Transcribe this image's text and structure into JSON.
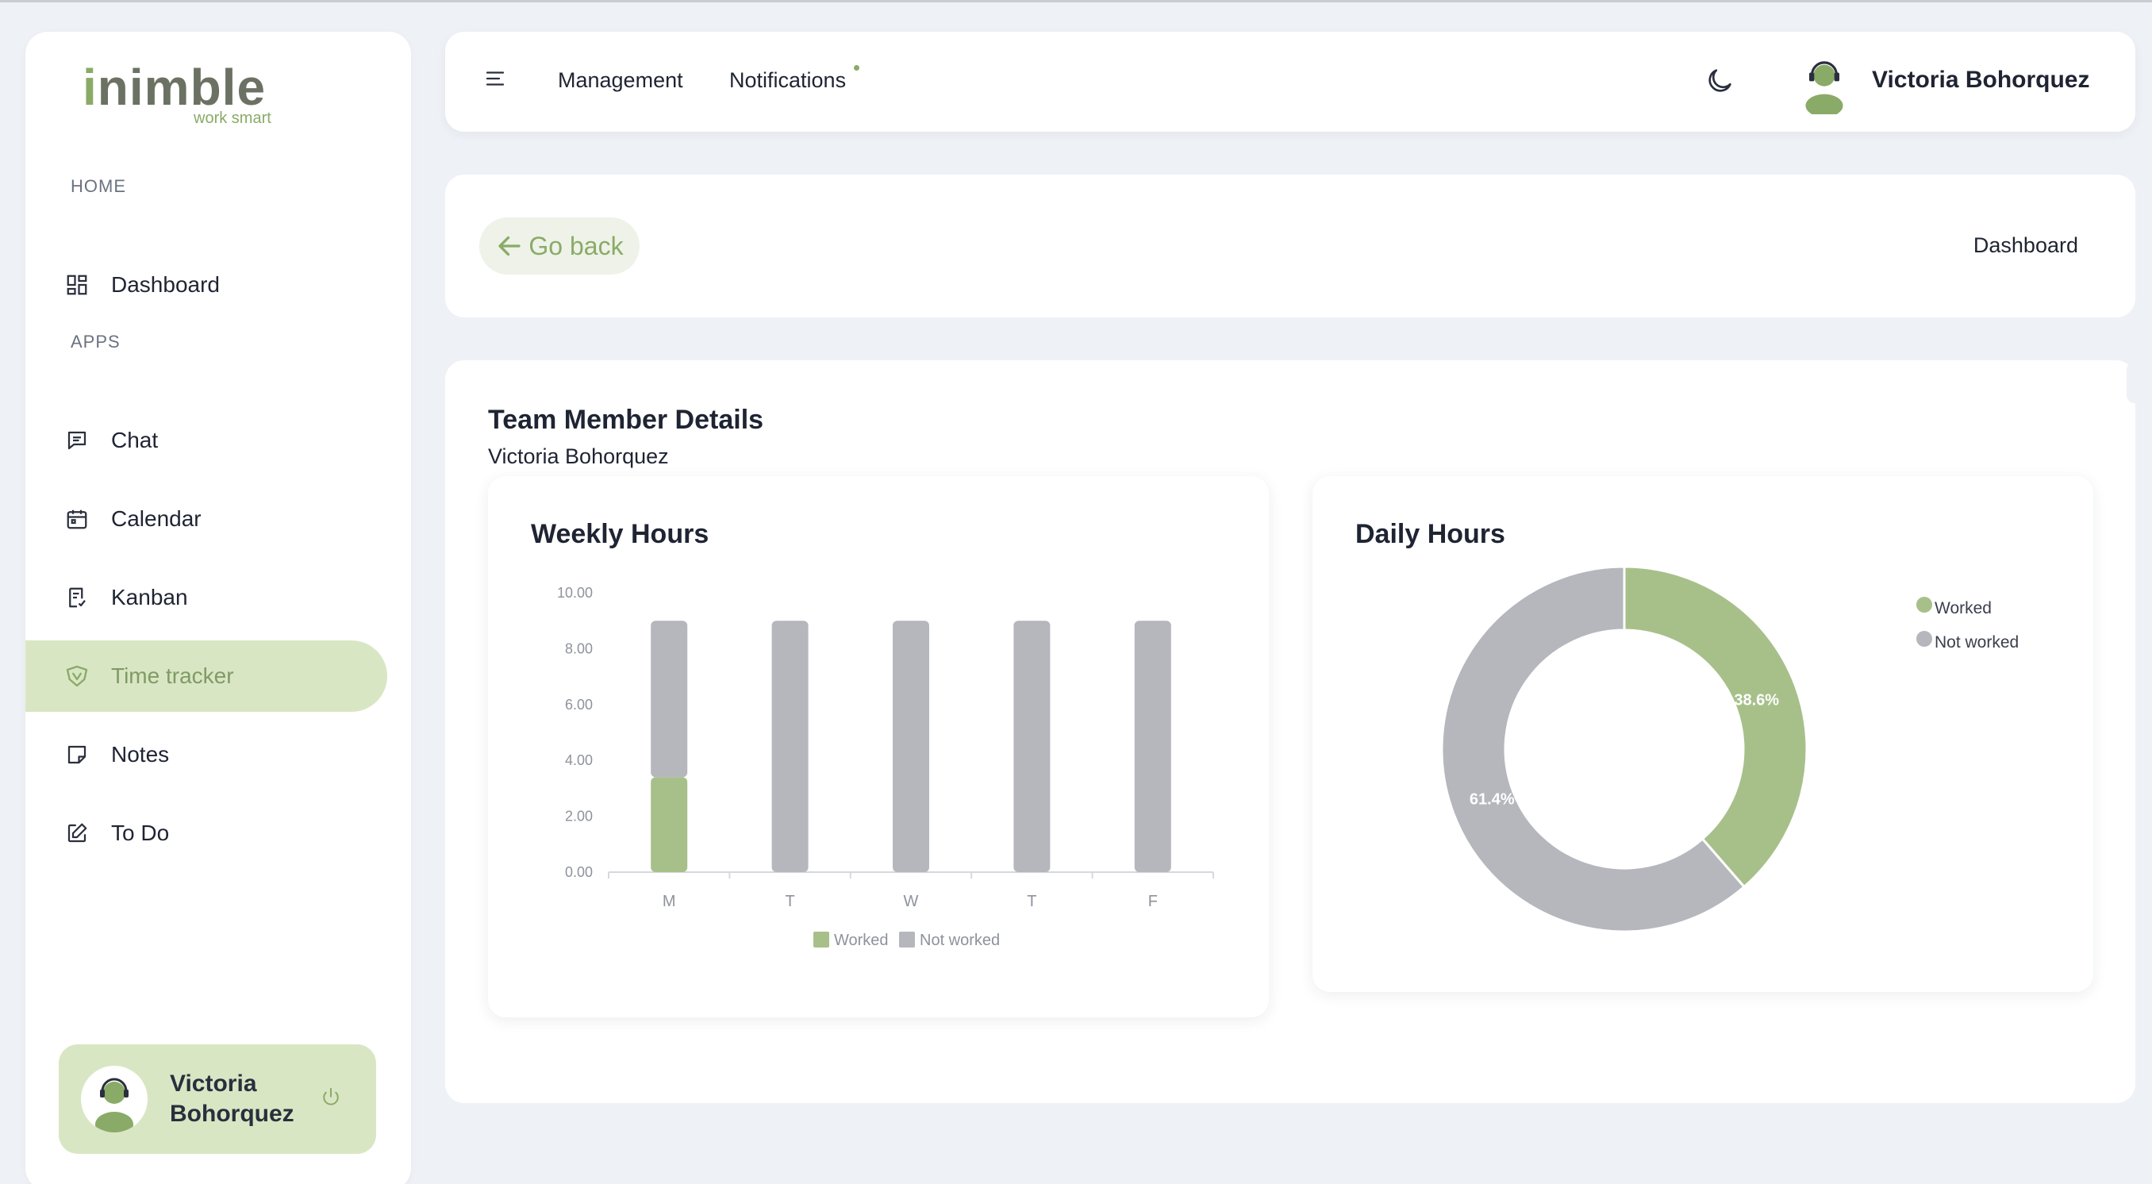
{
  "brand": {
    "name": "nimble",
    "prefix": "i",
    "tagline": "work smart"
  },
  "sidebar": {
    "sections": [
      {
        "label": "HOME",
        "items": [
          {
            "label": "Dashboard",
            "icon": "dashboard-icon"
          }
        ]
      },
      {
        "label": "APPS",
        "items": [
          {
            "label": "Chat",
            "icon": "chat-icon"
          },
          {
            "label": "Calendar",
            "icon": "calendar-icon"
          },
          {
            "label": "Kanban",
            "icon": "kanban-icon"
          },
          {
            "label": "Time tracker",
            "icon": "time-tracker-icon",
            "active": true
          },
          {
            "label": "Notes",
            "icon": "notes-icon"
          },
          {
            "label": "To Do",
            "icon": "todo-icon"
          }
        ]
      }
    ],
    "user": {
      "name": "Victoria Bohorquez"
    }
  },
  "topbar": {
    "links": [
      "Management",
      "Notifications"
    ],
    "user_name": "Victoria Bohorquez"
  },
  "breadcrumb": {
    "back_label": "Go back",
    "current": "Dashboard"
  },
  "details": {
    "title": "Team Member Details",
    "subtitle": "Victoria Bohorquez"
  },
  "colors": {
    "accent": "#8aab67",
    "accent_light": "#d9e6c4",
    "worked": "#a7c08a",
    "not_worked": "#b5b7bd"
  },
  "chart_data": [
    {
      "title": "Weekly Hours",
      "type": "bar",
      "stacked": true,
      "categories": [
        "M",
        "T",
        "W",
        "T",
        "F"
      ],
      "series": [
        {
          "name": "Worked",
          "values": [
            3.4,
            0,
            0,
            0,
            0
          ]
        },
        {
          "name": "Not worked",
          "values": [
            5.6,
            9.0,
            9.0,
            9.0,
            9.0
          ]
        }
      ],
      "ylim": [
        0,
        10
      ],
      "yticks": [
        "0.00",
        "2.00",
        "4.00",
        "6.00",
        "8.00",
        "10.00"
      ],
      "legend": "bottom"
    },
    {
      "title": "Daily Hours",
      "type": "pie",
      "donut": true,
      "slices": [
        {
          "name": "Worked",
          "value": 38.6,
          "label": "38.6%"
        },
        {
          "name": "Not worked",
          "value": 61.4,
          "label": "61.4%"
        }
      ],
      "legend": "top-right"
    }
  ]
}
